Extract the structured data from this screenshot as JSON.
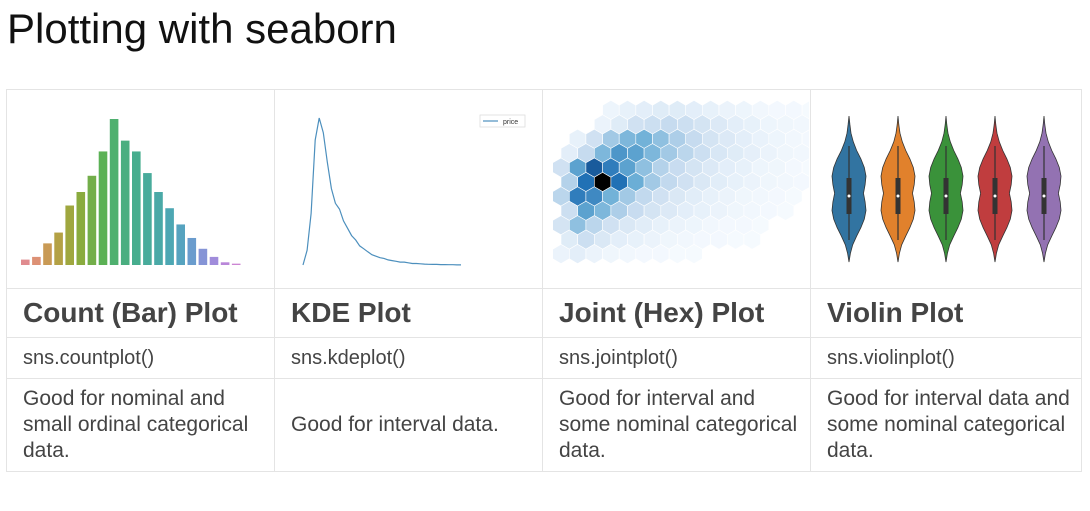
{
  "page": {
    "title": "Plotting with seaborn"
  },
  "columns": [
    {
      "name": "Count (Bar) Plot",
      "function": "sns.countplot()",
      "description": "Good for nominal and small ordinal categorical data."
    },
    {
      "name": "KDE Plot",
      "function": "sns.kdeplot()",
      "description": "Good for interval data."
    },
    {
      "name": "Joint (Hex) Plot",
      "function": "sns.jointplot()",
      "description": "Good for interval and some nominal categorical data."
    },
    {
      "name": "Violin Plot",
      "function": "sns.violinplot()",
      "description": "Good for interval data and some nominal categorical data."
    }
  ],
  "chart_data": [
    {
      "type": "bar",
      "values": [
        2,
        3,
        8,
        12,
        22,
        27,
        33,
        42,
        54,
        46,
        42,
        34,
        27,
        21,
        15,
        10,
        6,
        3,
        1,
        0.5
      ],
      "colors": [
        "#e08b8f",
        "#dd9175",
        "#c99a55",
        "#b4a145",
        "#9fa73f",
        "#8aab3e",
        "#73ae4a",
        "#5bb155",
        "#4fb06f",
        "#4aae80",
        "#47ad8e",
        "#48ab9b",
        "#4aa9a7",
        "#4da7b3",
        "#56a3bf",
        "#6a9ccd",
        "#8594d6",
        "#a08cdb",
        "#b987d9",
        "#cc86d3"
      ]
    },
    {
      "type": "line",
      "series": [
        {
          "name": "price",
          "color": "#4c8fbd"
        }
      ],
      "y": [
        0,
        0.1,
        0.35,
        0.85,
        1.0,
        0.9,
        0.7,
        0.52,
        0.42,
        0.38,
        0.3,
        0.25,
        0.2,
        0.17,
        0.13,
        0.11,
        0.09,
        0.07,
        0.06,
        0.05,
        0.045,
        0.035,
        0.03,
        0.025,
        0.02,
        0.02,
        0.015,
        0.01,
        0.01,
        0.008,
        0.006,
        0.005,
        0.004,
        0.004,
        0.003,
        0.003,
        0.002,
        0.002,
        0.001,
        0.001
      ]
    },
    {
      "type": "heatmap",
      "values": [
        [
          0.0,
          0.0,
          0.0,
          0.05,
          0.08,
          0.1,
          0.12,
          0.12,
          0.1,
          0.08,
          0.06,
          0.05,
          0.03,
          0.02,
          0.02,
          0.01
        ],
        [
          0.0,
          0.0,
          0.06,
          0.12,
          0.2,
          0.22,
          0.25,
          0.22,
          0.18,
          0.14,
          0.1,
          0.08,
          0.05,
          0.04,
          0.03,
          0.02
        ],
        [
          0.0,
          0.08,
          0.2,
          0.35,
          0.45,
          0.48,
          0.4,
          0.32,
          0.25,
          0.18,
          0.14,
          0.1,
          0.07,
          0.05,
          0.03,
          0.02
        ],
        [
          0.1,
          0.25,
          0.45,
          0.6,
          0.55,
          0.45,
          0.35,
          0.28,
          0.22,
          0.16,
          0.12,
          0.09,
          0.06,
          0.04,
          0.03,
          0.02
        ],
        [
          0.2,
          0.55,
          0.8,
          0.7,
          0.55,
          0.4,
          0.3,
          0.24,
          0.18,
          0.14,
          0.1,
          0.08,
          0.05,
          0.04,
          0.02,
          0.01
        ],
        [
          0.3,
          0.75,
          1.0,
          0.75,
          0.5,
          0.35,
          0.26,
          0.2,
          0.15,
          0.11,
          0.08,
          0.06,
          0.04,
          0.03,
          0.02,
          0.01
        ],
        [
          0.28,
          0.7,
          0.65,
          0.48,
          0.35,
          0.26,
          0.2,
          0.15,
          0.11,
          0.08,
          0.06,
          0.04,
          0.03,
          0.02,
          0.01,
          0.0
        ],
        [
          0.22,
          0.55,
          0.45,
          0.32,
          0.24,
          0.18,
          0.14,
          0.1,
          0.08,
          0.06,
          0.04,
          0.03,
          0.02,
          0.01,
          0.0,
          0.0
        ],
        [
          0.18,
          0.4,
          0.28,
          0.2,
          0.15,
          0.11,
          0.08,
          0.06,
          0.05,
          0.03,
          0.02,
          0.02,
          0.01,
          0.0,
          0.0,
          0.0
        ],
        [
          0.12,
          0.22,
          0.15,
          0.1,
          0.08,
          0.06,
          0.04,
          0.03,
          0.02,
          0.02,
          0.01,
          0.01,
          0.0,
          0.0,
          0.0,
          0.0
        ],
        [
          0.06,
          0.1,
          0.06,
          0.04,
          0.03,
          0.02,
          0.02,
          0.01,
          0.01,
          0.0,
          0.0,
          0.0,
          0.0,
          0.0,
          0.0,
          0.0
        ]
      ]
    },
    {
      "type": "violin",
      "colors": [
        "#3274a1",
        "#e1812c",
        "#3a923a",
        "#c03d3e",
        "#9372b2"
      ]
    }
  ]
}
